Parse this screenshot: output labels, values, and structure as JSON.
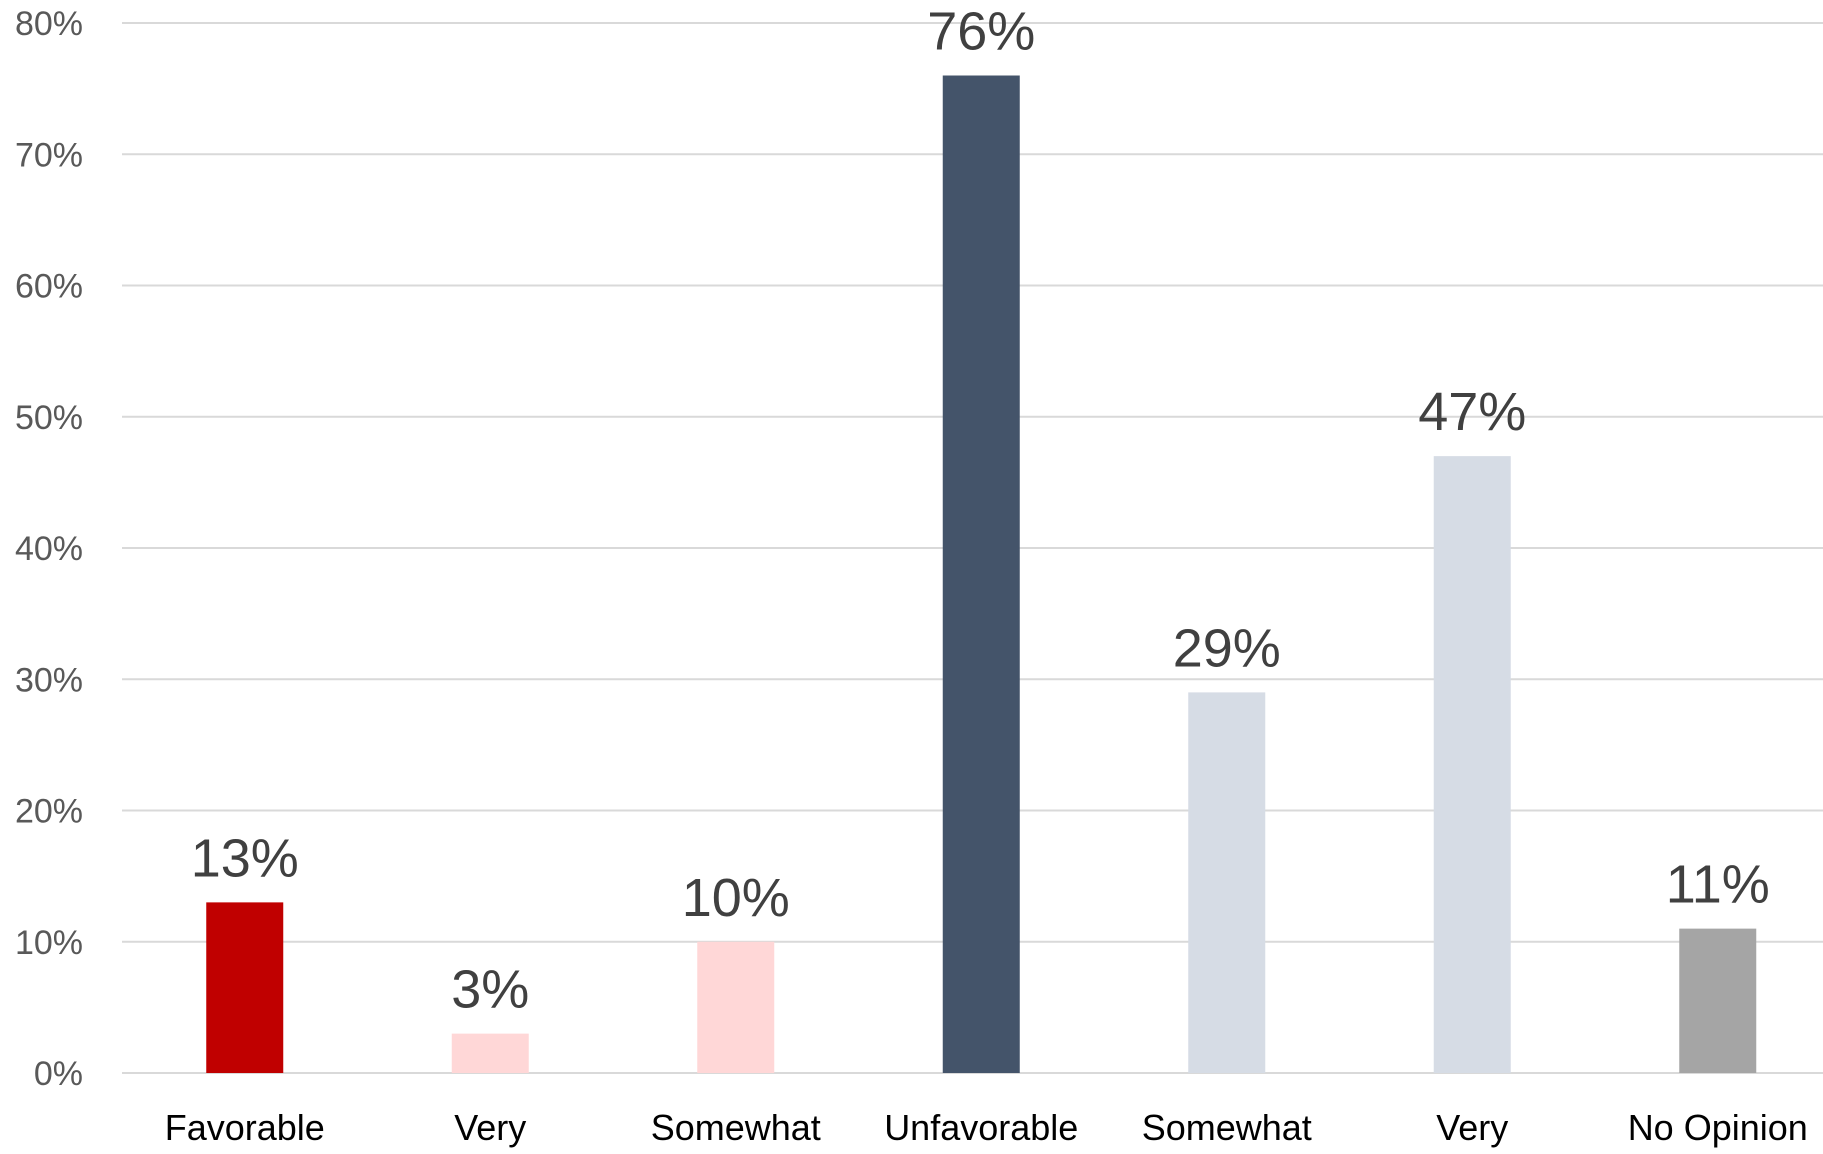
{
  "chart_data": {
    "type": "bar",
    "categories": [
      "Favorable",
      "Very",
      "Somewhat",
      "Unfavorable",
      "Somewhat",
      "Very",
      "No Opinion"
    ],
    "values": [
      13,
      3,
      10,
      76,
      29,
      47,
      11
    ],
    "data_labels": [
      "13%",
      "3%",
      "10%",
      "76%",
      "29%",
      "47%",
      "11%"
    ],
    "bar_colors": [
      "#c00000",
      "#ffd7d7",
      "#ffd7d7",
      "#44546a",
      "#d6dce5",
      "#d6dce5",
      "#a5a5a5"
    ],
    "ylim": [
      0,
      80
    ],
    "yticks": [
      0,
      10,
      20,
      30,
      40,
      50,
      60,
      70,
      80
    ],
    "ytick_labels": [
      "0%",
      "10%",
      "20%",
      "30%",
      "40%",
      "50%",
      "60%",
      "70%",
      "80%"
    ],
    "grid": true,
    "legend": "none"
  }
}
